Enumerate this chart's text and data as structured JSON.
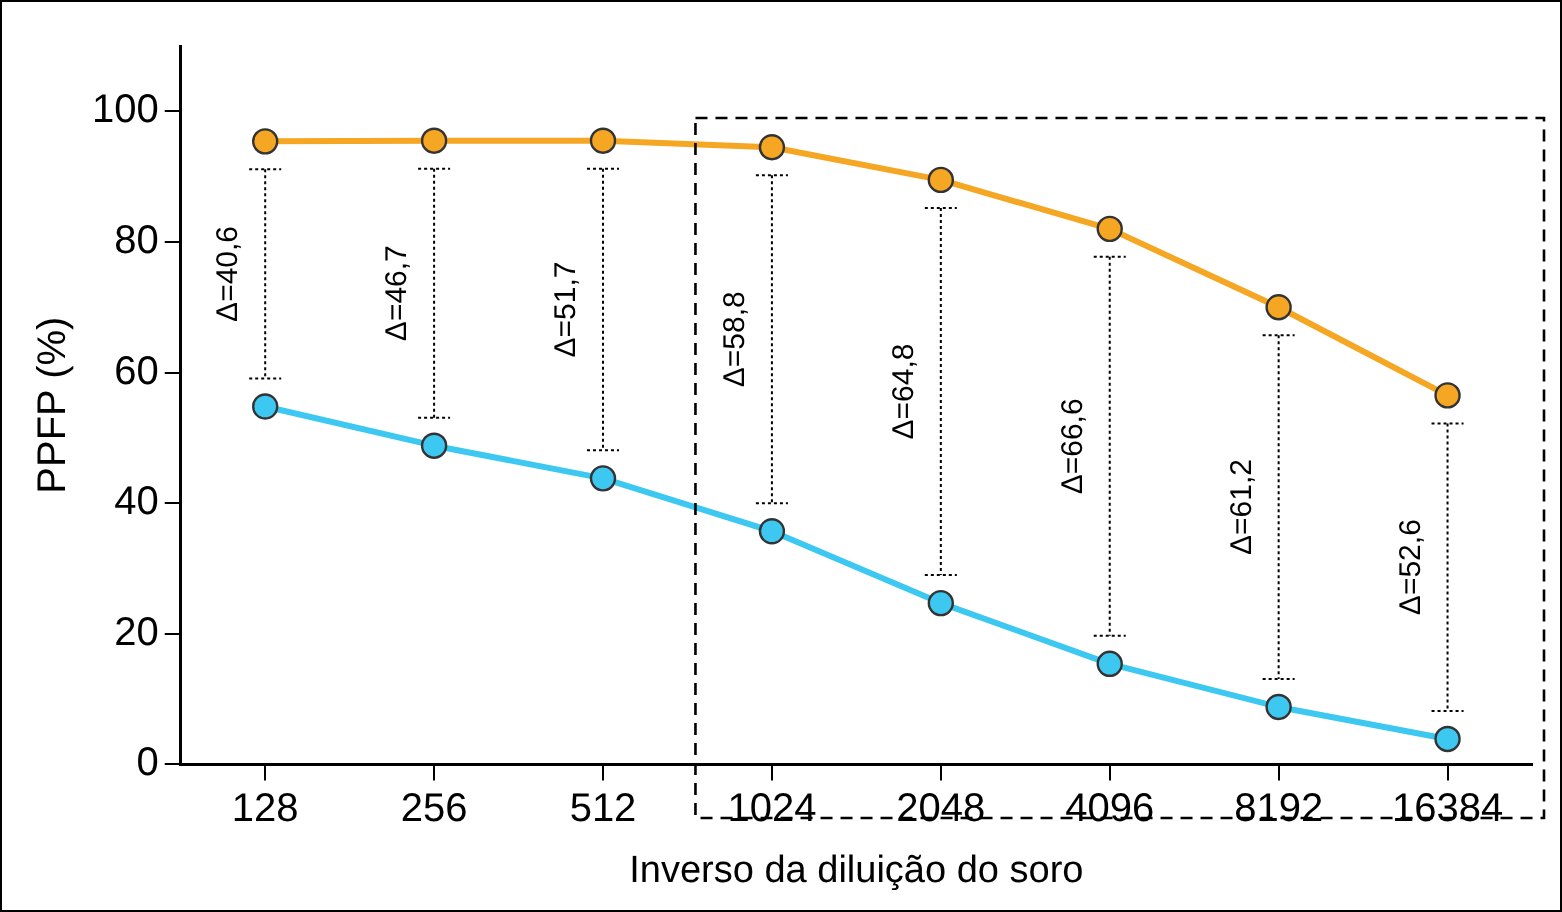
{
  "chart_data": {
    "type": "line",
    "xlabel": "Inverso da diluição do soro",
    "ylabel": "PPFP (%)",
    "categories": [
      "128",
      "256",
      "512",
      "1024",
      "2048",
      "4096",
      "8192",
      "16384"
    ],
    "series": [
      {
        "color": "#f5a623",
        "values": [
          95.4,
          95.5,
          95.5,
          94.5,
          89.5,
          82,
          70,
          56.5
        ]
      },
      {
        "color": "#3cc8f0",
        "values": [
          54.8,
          48.8,
          43.8,
          35.7,
          24.7,
          15.4,
          8.8,
          3.9
        ]
      }
    ],
    "ylim": [
      0,
      110
    ],
    "yticks": [
      0,
      20,
      40,
      60,
      80,
      100
    ],
    "grid": false,
    "legend": false,
    "marker": "circle",
    "line_style": "solid",
    "annotations": [
      "Δ=40,6",
      "Δ=46,7",
      "Δ=51,7",
      "Δ=58,8",
      "Δ=64,8",
      "Δ=66,6",
      "Δ=61,2",
      "Δ=52,6"
    ]
  }
}
